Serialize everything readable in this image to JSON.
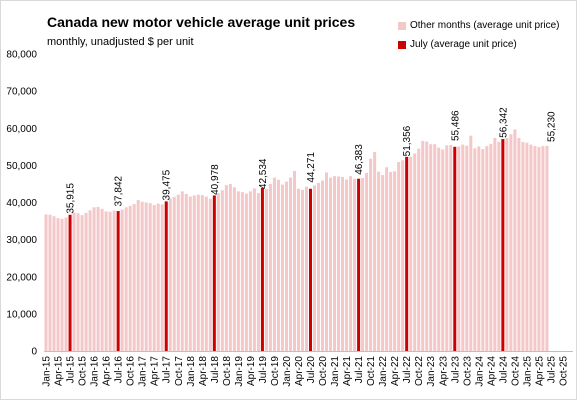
{
  "chart_data": {
    "type": "bar",
    "title": "Canada new motor vehicle average unit prices",
    "subtitle": "monthly, unadjusted $ per unit",
    "ylim": [
      0,
      80000
    ],
    "yticks": [
      0,
      10000,
      20000,
      30000,
      40000,
      50000,
      60000,
      70000,
      80000
    ],
    "ytick_labels": [
      "0",
      "10,000",
      "20,000",
      "30,000",
      "40,000",
      "50,000",
      "60,000",
      "70,000",
      "80,000"
    ],
    "x_tick_labels": [
      "Jan-15",
      "Apr-15",
      "Jul-15",
      "Oct-15",
      "Jan-16",
      "Apr-16",
      "Jul-16",
      "Oct-16",
      "Jan-17",
      "Apr-17",
      "Jul-17",
      "Oct-17",
      "Jan-18",
      "Apr-18",
      "Jul-18",
      "Oct-18",
      "Jan-19",
      "Apr-19",
      "Jul-19",
      "Oct-19",
      "Jan-20",
      "Apr-20",
      "Jul-20",
      "Oct-20",
      "Jan-21",
      "Apr-21",
      "Jul-21",
      "Oct-21",
      "Jan-22",
      "Apr-22",
      "Jul-22",
      "Oct-22",
      "Jan-23",
      "Apr-23",
      "Jul-23",
      "Oct-23",
      "Jan-24",
      "Apr-24",
      "Jul-24",
      "Oct-24",
      "Jan-25",
      "Apr-25",
      "Jul-25",
      "Oct-25"
    ],
    "legend_position": "top-right",
    "series": [
      {
        "name": "Other months (average unit price)",
        "color": "#f4c7c8"
      },
      {
        "name": "July (average unit price)",
        "color": "#cc0000"
      }
    ],
    "values": [
      36800,
      36700,
      36300,
      35800,
      35600,
      35915,
      36700,
      37300,
      37100,
      36600,
      37200,
      37900,
      38700,
      38800,
      38300,
      37600,
      37500,
      37842,
      37700,
      38100,
      38700,
      39100,
      39600,
      40700,
      40200,
      40000,
      39800,
      39300,
      39700,
      39475,
      40300,
      41100,
      41500,
      42100,
      43000,
      42300,
      41600,
      41900,
      42100,
      42000,
      41600,
      40978,
      41900,
      42500,
      43300,
      44700,
      45000,
      44100,
      43000,
      42800,
      42400,
      43000,
      43800,
      42534,
      43900,
      43600,
      45000,
      46700,
      46100,
      44800,
      45600,
      46700,
      48500,
      43700,
      43400,
      44271,
      43700,
      44600,
      45300,
      45900,
      48100,
      46700,
      47100,
      47000,
      46900,
      46200,
      47100,
      46383,
      46400,
      46600,
      48000,
      51800,
      53600,
      48300,
      47400,
      49500,
      48200,
      48400,
      50900,
      51356,
      52300,
      52300,
      53200,
      54500,
      56600,
      56400,
      55700,
      55700,
      54800,
      54300,
      55400,
      55486,
      55000,
      55100,
      55600,
      55300,
      58000,
      54600,
      55100,
      54400,
      55200,
      55800,
      57400,
      56342,
      57100,
      57400,
      58400,
      59700,
      57400,
      56300,
      56100,
      55600,
      55200,
      54900,
      55200,
      55230
    ],
    "highlight_labels": [
      {
        "month": "Jul-15",
        "value": 35915,
        "label": "35,915"
      },
      {
        "month": "Jul-16",
        "value": 37842,
        "label": "37,842"
      },
      {
        "month": "Jul-17",
        "value": 39475,
        "label": "39,475"
      },
      {
        "month": "Jul-18",
        "value": 40978,
        "label": "40,978"
      },
      {
        "month": "Jul-19",
        "value": 42534,
        "label": "42,534"
      },
      {
        "month": "Jul-20",
        "value": 44271,
        "label": "44,271"
      },
      {
        "month": "Jul-21",
        "value": 46383,
        "label": "46,383"
      },
      {
        "month": "Jul-22",
        "value": 51356,
        "label": "51,356"
      },
      {
        "month": "Jul-23",
        "value": 55486,
        "label": "55,486"
      },
      {
        "month": "Jul-24",
        "value": 56342,
        "label": "56,342"
      },
      {
        "month": "Jul-25",
        "value": 55230,
        "label": "55,230"
      }
    ],
    "grid": false
  }
}
